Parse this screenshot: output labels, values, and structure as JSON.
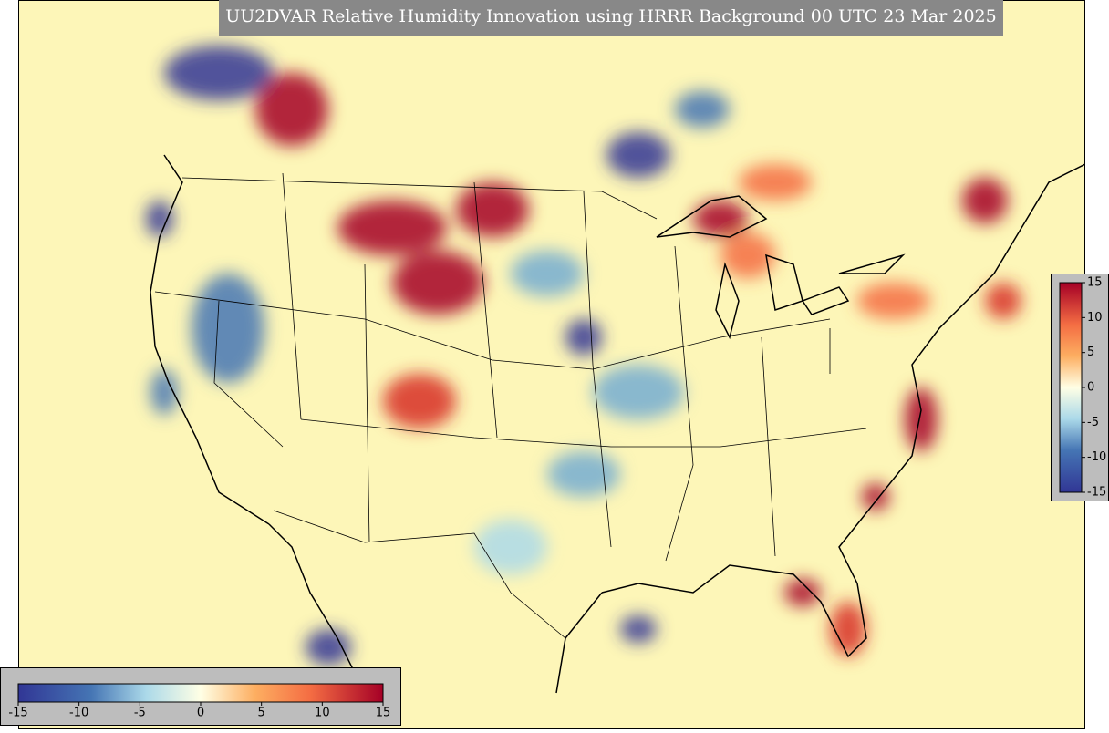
{
  "title": "UU2DVAR Relative Humidity Innovation using HRRR Background 00 UTC 23 Mar 2025",
  "horizontal_colorbar": {
    "clim": [
      -15,
      15
    ],
    "ticks": [
      -15,
      -10,
      -5,
      0,
      5,
      10,
      15
    ]
  },
  "vertical_colorbar": {
    "clim": [
      -15,
      15
    ],
    "ticks": [
      15,
      10,
      5,
      0,
      -5,
      -10,
      -15
    ]
  }
}
